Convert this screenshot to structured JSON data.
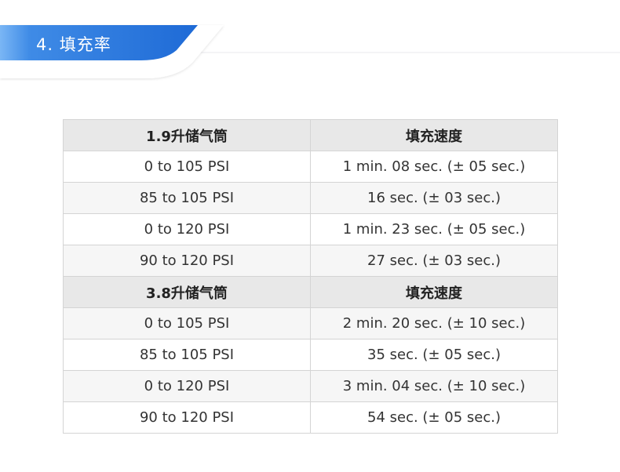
{
  "header": {
    "title": "4. 填充率",
    "accent": "#2b78dc"
  },
  "sections": [
    {
      "tank": "1.9升储气筒",
      "col2": "填充速度",
      "rows": [
        [
          "0 to 105 PSI",
          "1 min. 08 sec. (± 05 sec.)"
        ],
        [
          "85 to 105 PSI",
          "16 sec. (± 03 sec.)"
        ],
        [
          "0 to 120 PSI",
          "1 min. 23 sec. (± 05 sec.)"
        ],
        [
          "90 to 120 PSI",
          "27 sec. (± 03 sec.)"
        ]
      ]
    },
    {
      "tank": "3.8升储气筒",
      "col2": "填充速度",
      "rows": [
        [
          "0 to 105 PSI",
          "2 min. 20 sec. (± 10 sec.)"
        ],
        [
          "85 to 105 PSI",
          "35 sec. (± 05 sec.)"
        ],
        [
          "0 to 120 PSI",
          "3 min. 04 sec. (± 10 sec.)"
        ],
        [
          "90 to 120 PSI",
          "54 sec. (± 05 sec.)"
        ]
      ]
    }
  ]
}
